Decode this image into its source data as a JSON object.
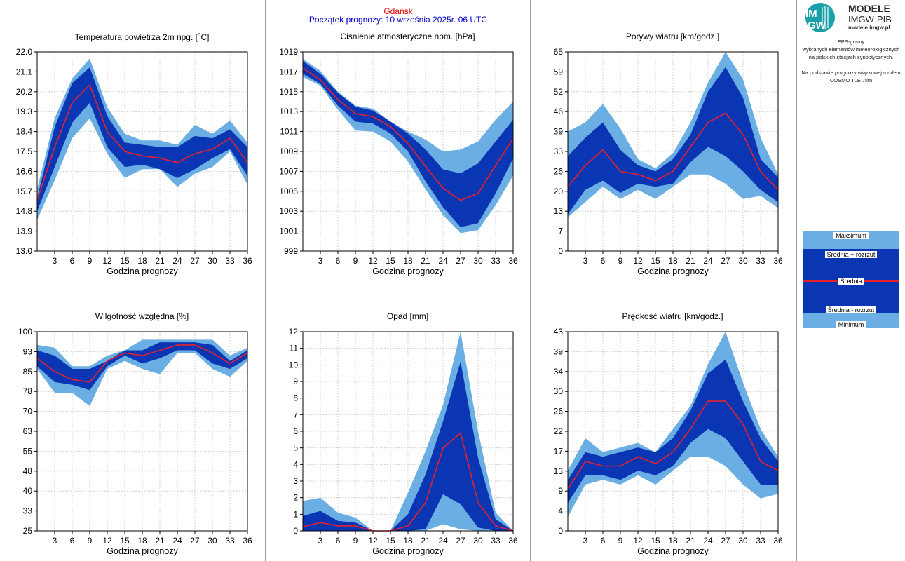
{
  "header": {
    "station": "Gdańsk",
    "forecast_start": "Początek prognozy: 10 września 2025r. 06 UTC"
  },
  "logo": {
    "mark_top": "IM",
    "mark_bottom": "GW",
    "title": "MODELE",
    "org": "IMGW-PIB",
    "url": "modele.imgw.pl"
  },
  "notes": {
    "line1": "EPS-gramy",
    "line2": "wybranych elementów meteorologicznych",
    "line3": "na polskich stacjach  synoptycznych.",
    "line4": "Na podstawie prognozy wiązkowej modelu",
    "line5": "COSMO TLE 7km"
  },
  "legend": {
    "max": "Maksimum",
    "mean_plus": "Średnia + rozrzut",
    "mean": "Średnia",
    "mean_minus": "Średnia - rozrzut",
    "min": "Minimum"
  },
  "colors": {
    "extreme_band": "#6aaee4",
    "spread_band": "#0a36b4",
    "mean_line": "#e8202a",
    "grid": "#c8c8c8",
    "station_title": "#e60000",
    "start_title": "#0000cc"
  },
  "chart_data": [
    {
      "id": "temperature",
      "type": "area",
      "title": "Temperatura powietrza 2m npg. [°C]",
      "xlabel": "Godzina prognozy",
      "x": [
        0,
        3,
        6,
        9,
        12,
        15,
        18,
        21,
        24,
        27,
        30,
        33,
        36
      ],
      "xticks": [
        "3",
        "6",
        "9",
        "12",
        "15",
        "18",
        "21",
        "24",
        "27",
        "30",
        "33",
        "36"
      ],
      "ylim": [
        13.0,
        22.0
      ],
      "yticks": [
        "13.0",
        "13.9",
        "14.8",
        "15.7",
        "16.6",
        "17.5",
        "18.4",
        "19.3",
        "20.2",
        "21.1",
        "22.0"
      ],
      "series": [
        {
          "name": "Maksimum",
          "values": [
            15.8,
            19.0,
            20.8,
            21.7,
            19.5,
            18.3,
            18.0,
            18.0,
            17.8,
            18.7,
            18.3,
            18.9,
            17.9
          ]
        },
        {
          "name": "Średnia + rozrzut",
          "values": [
            15.4,
            18.6,
            20.6,
            21.3,
            19.1,
            17.9,
            17.8,
            17.7,
            17.7,
            18.2,
            18.1,
            18.5,
            17.7
          ]
        },
        {
          "name": "Średnia",
          "values": [
            15.3,
            17.7,
            19.7,
            20.5,
            18.4,
            17.5,
            17.3,
            17.2,
            17.0,
            17.4,
            17.6,
            18.1,
            17.0
          ]
        },
        {
          "name": "Średnia - rozrzut",
          "values": [
            14.8,
            16.8,
            18.8,
            19.7,
            17.7,
            16.8,
            16.9,
            16.7,
            16.3,
            16.7,
            17.2,
            17.6,
            16.4
          ]
        },
        {
          "name": "Minimum",
          "values": [
            14.4,
            16.2,
            18.1,
            19.0,
            17.4,
            16.3,
            16.7,
            16.7,
            15.9,
            16.5,
            16.8,
            17.5,
            16.0
          ]
        }
      ]
    },
    {
      "id": "pressure",
      "type": "area",
      "title": "Ciśnienie atmosferyczne npm. [hPa]",
      "xlabel": "Godzina prognozy",
      "x": [
        0,
        3,
        6,
        9,
        12,
        15,
        18,
        21,
        24,
        27,
        30,
        33,
        36
      ],
      "xticks": [
        "3",
        "6",
        "9",
        "12",
        "15",
        "18",
        "21",
        "24",
        "27",
        "30",
        "33",
        "36"
      ],
      "ylim": [
        999,
        1019
      ],
      "yticks": [
        "999",
        "1001",
        "1003",
        "1005",
        "1007",
        "1009",
        "1011",
        "1013",
        "1015",
        "1017",
        "1019"
      ],
      "series": [
        {
          "name": "Maksimum",
          "values": [
            1018.3,
            1017.1,
            1015.0,
            1013.6,
            1013.3,
            1012.0,
            1011.0,
            1010.2,
            1009.0,
            1009.2,
            1010.0,
            1012.2,
            1014.0
          ]
        },
        {
          "name": "Średnia + rozrzut",
          "values": [
            1018.1,
            1016.8,
            1014.9,
            1013.5,
            1013.1,
            1012.0,
            1010.8,
            1009.2,
            1007.2,
            1006.8,
            1007.8,
            1010.0,
            1012.2
          ]
        },
        {
          "name": "Średnia",
          "values": [
            1017.4,
            1016.2,
            1014.2,
            1012.8,
            1012.5,
            1011.5,
            1009.8,
            1007.5,
            1005.3,
            1004.1,
            1004.8,
            1007.6,
            1010.3
          ]
        },
        {
          "name": "Średnia - rozrzut",
          "values": [
            1016.8,
            1015.8,
            1013.6,
            1012.0,
            1011.8,
            1010.8,
            1009.0,
            1006.0,
            1003.4,
            1001.4,
            1001.8,
            1004.8,
            1008.3
          ]
        },
        {
          "name": "Minimum",
          "values": [
            1016.5,
            1015.6,
            1013.2,
            1011.1,
            1011.0,
            1010.0,
            1008.0,
            1005.2,
            1002.6,
            1000.8,
            1001.1,
            1003.6,
            1006.6
          ]
        }
      ]
    },
    {
      "id": "gusts",
      "type": "area",
      "title": "Porywy wiatru [km/godz.]",
      "xlabel": "Godzina prognozy",
      "x": [
        0,
        3,
        6,
        9,
        12,
        15,
        18,
        21,
        24,
        27,
        30,
        33,
        36
      ],
      "xticks": [
        "3",
        "6",
        "9",
        "12",
        "15",
        "18",
        "21",
        "24",
        "27",
        "30",
        "33",
        "36"
      ],
      "ylim": [
        0,
        65
      ],
      "yticks": [
        "0",
        "7",
        "13",
        "20",
        "26",
        "33",
        "39",
        "46",
        "52",
        "59",
        "65"
      ],
      "series": [
        {
          "name": "Maksimum",
          "values": [
            39,
            42,
            48,
            40,
            30,
            27,
            32,
            42,
            55,
            65,
            56,
            37,
            25
          ]
        },
        {
          "name": "Średnia + rozrzut",
          "values": [
            31,
            37,
            42,
            33,
            28,
            26,
            30,
            38,
            52,
            60,
            50,
            30,
            24
          ]
        },
        {
          "name": "Średnia",
          "values": [
            21,
            28,
            33,
            26,
            25,
            23,
            26,
            34,
            42,
            45,
            38,
            26,
            20
          ]
        },
        {
          "name": "Średnia - rozrzut",
          "values": [
            12,
            20,
            23,
            19,
            22,
            21,
            22,
            29,
            34,
            31,
            26,
            20,
            16
          ]
        },
        {
          "name": "Minimum",
          "values": [
            11,
            16,
            21,
            17,
            20,
            17,
            21,
            25,
            25,
            22,
            17,
            18,
            14
          ]
        }
      ]
    },
    {
      "id": "humidity",
      "type": "area",
      "title": "Wilgotność względna [%]",
      "xlabel": "Godzina prognozy",
      "x": [
        0,
        3,
        6,
        9,
        12,
        15,
        18,
        21,
        24,
        27,
        30,
        33,
        36
      ],
      "xticks": [
        "3",
        "6",
        "9",
        "12",
        "15",
        "18",
        "21",
        "24",
        "27",
        "30",
        "33",
        "36"
      ],
      "ylim": [
        25,
        100
      ],
      "yticks": [
        "25",
        "33",
        "40",
        "48",
        "55",
        "63",
        "70",
        "78",
        "85",
        "93",
        "100"
      ],
      "series": [
        {
          "name": "Maksimum",
          "values": [
            95,
            94,
            87,
            87,
            91,
            93,
            97,
            97,
            97,
            97,
            97,
            91,
            94
          ]
        },
        {
          "name": "Średnia + rozrzut",
          "values": [
            93,
            91,
            86,
            86,
            89,
            93,
            93,
            96,
            96,
            96,
            95,
            89,
            93
          ]
        },
        {
          "name": "Średnia",
          "values": [
            90,
            85,
            82,
            81,
            89,
            92,
            91,
            93,
            95,
            95,
            92,
            88,
            92
          ]
        },
        {
          "name": "Średnia - rozrzut",
          "values": [
            87,
            81,
            80,
            78,
            87,
            91,
            88,
            90,
            93,
            93,
            88,
            86,
            90
          ]
        },
        {
          "name": "Minimum",
          "values": [
            86,
            77,
            77,
            72,
            86,
            89,
            86,
            84,
            92,
            92,
            86,
            83,
            89
          ]
        }
      ]
    },
    {
      "id": "precipitation",
      "type": "area",
      "title": "Opad [mm]",
      "xlabel": "Godzina prognozy",
      "x": [
        0,
        3,
        6,
        9,
        12,
        15,
        18,
        21,
        24,
        27,
        30,
        33,
        36
      ],
      "xticks": [
        "3",
        "6",
        "9",
        "12",
        "15",
        "18",
        "21",
        "24",
        "27",
        "30",
        "33",
        "36"
      ],
      "ylim": [
        0,
        12
      ],
      "yticks": [
        "0",
        "1",
        "2",
        "3",
        "4",
        "5",
        "6",
        "7",
        "8",
        "9",
        "10",
        "11",
        "12"
      ],
      "series": [
        {
          "name": "Maksimum",
          "values": [
            1.8,
            2.0,
            1.1,
            0.8,
            0,
            0,
            2.3,
            4.8,
            7.6,
            12.0,
            6.0,
            1.1,
            0
          ]
        },
        {
          "name": "Średnia + rozrzut",
          "values": [
            0.9,
            1.2,
            0.6,
            0.5,
            0,
            0,
            1.0,
            3.4,
            6.6,
            10.2,
            4.4,
            0.7,
            0
          ]
        },
        {
          "name": "Średnia",
          "values": [
            0.25,
            0.5,
            0.3,
            0.3,
            0,
            0,
            0.3,
            1.7,
            5.0,
            5.9,
            1.7,
            0.3,
            0
          ]
        },
        {
          "name": "Średnia - rozrzut",
          "values": [
            0,
            0,
            0,
            0,
            0,
            0,
            0,
            0.1,
            2.2,
            1.6,
            0.2,
            0,
            0
          ]
        },
        {
          "name": "Minimum",
          "values": [
            0,
            0,
            0,
            0,
            0,
            0,
            0,
            0,
            0.4,
            0.1,
            0,
            0,
            0
          ]
        }
      ]
    },
    {
      "id": "wind_speed",
      "type": "area",
      "title": "Prędkość wiatru [km/godz.]",
      "xlabel": "Godzina prognozy",
      "x": [
        0,
        3,
        6,
        9,
        12,
        15,
        18,
        21,
        24,
        27,
        30,
        33,
        36
      ],
      "xticks": [
        "3",
        "6",
        "9",
        "12",
        "15",
        "18",
        "21",
        "24",
        "27",
        "30",
        "33",
        "36"
      ],
      "ylim": [
        0,
        43
      ],
      "yticks": [
        "0",
        "4",
        "9",
        "13",
        "17",
        "22",
        "26",
        "30",
        "34",
        "39",
        "43"
      ],
      "series": [
        {
          "name": "Maksimum",
          "values": [
            13,
            20,
            17,
            18,
            19,
            17,
            22,
            27,
            36,
            43,
            32,
            22,
            16
          ]
        },
        {
          "name": "Średnia + rozrzut",
          "values": [
            11,
            17,
            16,
            17,
            18,
            17,
            20,
            26,
            34,
            37,
            28,
            20,
            15
          ]
        },
        {
          "name": "Średnia",
          "values": [
            9,
            15,
            14,
            14,
            16,
            14.5,
            17,
            22,
            28,
            28,
            23,
            15,
            13
          ]
        },
        {
          "name": "Średnia - rozrzut",
          "values": [
            6,
            12,
            12,
            11,
            13,
            12,
            14,
            19,
            22,
            20,
            15,
            10,
            10
          ]
        },
        {
          "name": "Minimum",
          "values": [
            3,
            10,
            11,
            10,
            12,
            10,
            13,
            16,
            16,
            14,
            10,
            7,
            8
          ]
        }
      ]
    }
  ]
}
